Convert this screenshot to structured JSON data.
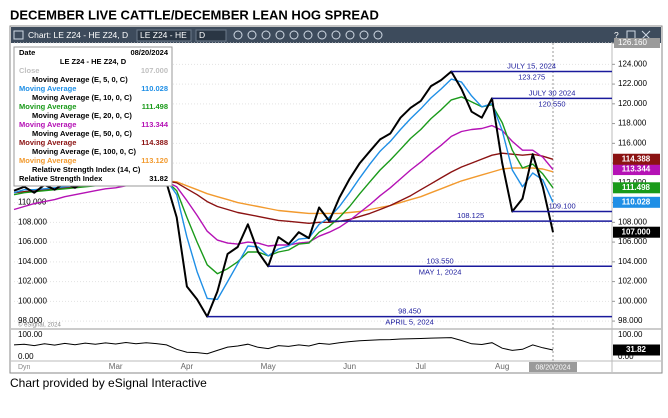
{
  "title": "DECEMBER LIVE CATTLE/DECEMBER LEAN HOG SPREAD",
  "footer": "Chart provided by eSignal Interactive",
  "ui": {
    "toolbar_title": "Chart: LE Z24 - HE Z24, D",
    "symbol_box": "LE Z24 - HE",
    "interval_box": "D",
    "help": "?",
    "watermark": "© eSignal, 2024",
    "mode": "Dyn"
  },
  "chart_data": {
    "type": "line",
    "categories": [
      null,
      null,
      null,
      null,
      null,
      null,
      null,
      null,
      null,
      null,
      "Mar",
      null,
      null,
      null,
      null,
      null,
      null,
      "Apr",
      null,
      null,
      null,
      null,
      null,
      null,
      null,
      "May",
      null,
      null,
      null,
      null,
      null,
      null,
      null,
      "Jun",
      null,
      null,
      null,
      null,
      null,
      null,
      "Jul",
      null,
      null,
      null,
      null,
      null,
      null,
      null,
      "Aug",
      null,
      null,
      null,
      null,
      null
    ],
    "ylim": [
      97.3,
      126.16
    ],
    "yticks": [
      {
        "value": 126.16,
        "label": "126.160"
      },
      {
        "value": 124,
        "label": "124.000"
      },
      {
        "value": 122,
        "label": "122.000"
      },
      {
        "value": 120,
        "label": "120.000"
      },
      {
        "value": 118,
        "label": "118.000"
      },
      {
        "value": 116,
        "label": "116.000"
      },
      {
        "value": 114,
        "label": "114.000"
      },
      {
        "value": 112,
        "label": "112.000"
      },
      {
        "value": 110,
        "label": "110.000"
      },
      {
        "value": 108,
        "label": "108.000"
      },
      {
        "value": 106,
        "label": "106.000"
      },
      {
        "value": 104,
        "label": "104.000"
      },
      {
        "value": 102,
        "label": "102.000"
      },
      {
        "value": 100,
        "label": "100.000"
      },
      {
        "value": 98,
        "label": "98.000"
      }
    ],
    "y_left_ticks": [
      {
        "value": 110,
        "label": "110.000"
      },
      {
        "value": 108,
        "label": "108.000"
      },
      {
        "value": 106,
        "label": "106.000"
      },
      {
        "value": 104,
        "label": "104.000"
      },
      {
        "value": 102,
        "label": "102.000"
      },
      {
        "value": 100,
        "label": "100.000"
      },
      {
        "value": 98,
        "label": "98.000"
      }
    ],
    "grid": true,
    "cursor_date": "08/20/2024",
    "data_window": {
      "date_label": "Date",
      "symbol": "LE Z24 - HE Z24, D"
    },
    "series": [
      {
        "name": "Close",
        "color": "#000000",
        "tag": true,
        "values": [
          111.2,
          111.6,
          111.0,
          111.8,
          111.3,
          112.0,
          111.5,
          112.2,
          111.8,
          112.4,
          112.0,
          112.8,
          112.3,
          112.9,
          112.5,
          112.0,
          108.5,
          101.5,
          100.2,
          98.45,
          101.0,
          104.8,
          105.5,
          107.8,
          105.0,
          103.55,
          106.5,
          105.8,
          107.0,
          106.4,
          109.5,
          108.125,
          110.5,
          112.4,
          114.0,
          115.2,
          116.4,
          117.0,
          118.6,
          119.6,
          120.3,
          121.8,
          122.4,
          123.275,
          121.5,
          119.2,
          118.6,
          120.55,
          114.0,
          109.1,
          110.4,
          114.9,
          111.6,
          107.0
        ],
        "value_labels": [
          null,
          null,
          null,
          null,
          null,
          null,
          null,
          null,
          null,
          null,
          null,
          null,
          null,
          null,
          null,
          null,
          null,
          null,
          null,
          null,
          null,
          null,
          null,
          null,
          null,
          null,
          null,
          null,
          null,
          null,
          null,
          null,
          null,
          null,
          null,
          null,
          null,
          null,
          null,
          null,
          null,
          null,
          null,
          null,
          null,
          null,
          null,
          null,
          null,
          null,
          null,
          null,
          null,
          "107.000"
        ]
      },
      {
        "name": "Moving Average",
        "study": "Moving Average (E, 5, 0, C)",
        "color": "#1f8fe6",
        "tag": true,
        "values": [
          111.0,
          111.3,
          111.3,
          111.4,
          111.5,
          111.6,
          111.7,
          111.8,
          111.9,
          112.0,
          112.1,
          112.3,
          112.4,
          112.5,
          112.5,
          112.3,
          110.8,
          106.5,
          103.0,
          100.3,
          100.2,
          102.0,
          103.8,
          105.6,
          105.5,
          104.6,
          105.3,
          105.6,
          106.3,
          106.4,
          107.8,
          108.5,
          109.6,
          111.0,
          112.5,
          113.9,
          115.2,
          116.2,
          117.4,
          118.5,
          119.5,
          120.6,
          121.5,
          122.5,
          122.2,
          120.8,
          119.7,
          120.0,
          117.3,
          113.3,
          111.6,
          113.0,
          112.3,
          110.028
        ]
      },
      {
        "name": "Moving Average",
        "study": "Moving Average (E, 10, 0, C)",
        "color": "#1a9a1a",
        "tag": true,
        "values": [
          110.8,
          111.0,
          111.1,
          111.2,
          111.3,
          111.4,
          111.5,
          111.6,
          111.7,
          111.8,
          111.9,
          112.0,
          112.1,
          112.2,
          112.3,
          112.2,
          111.2,
          108.5,
          106.0,
          103.7,
          102.8,
          103.3,
          104.0,
          105.0,
          105.0,
          104.6,
          105.0,
          105.2,
          105.8,
          105.9,
          107.0,
          107.6,
          108.5,
          109.6,
          110.9,
          112.1,
          113.3,
          114.3,
          115.4,
          116.5,
          117.4,
          118.5,
          119.4,
          120.4,
          120.7,
          120.2,
          119.7,
          119.9,
          118.1,
          115.3,
          113.5,
          113.9,
          112.9,
          111.498
        ]
      },
      {
        "name": "Moving Average",
        "study": "Moving Average (E, 20, 0, C)",
        "color": "#b512b5",
        "tag": true,
        "values": [
          109.3,
          109.6,
          109.9,
          110.1,
          110.3,
          110.6,
          110.8,
          111.0,
          111.2,
          111.4,
          111.5,
          111.7,
          111.8,
          112.0,
          112.1,
          112.1,
          111.6,
          110.2,
          108.7,
          107.1,
          106.2,
          105.9,
          105.8,
          106.0,
          105.9,
          105.6,
          105.7,
          105.7,
          105.9,
          106.0,
          106.6,
          107.0,
          107.5,
          108.2,
          109.0,
          109.8,
          110.7,
          111.5,
          112.4,
          113.3,
          114.1,
          115.0,
          115.8,
          116.7,
          117.2,
          117.4,
          117.5,
          117.8,
          117.3,
          116.2,
          115.3,
          115.3,
          114.6,
          113.344
        ]
      },
      {
        "name": "Moving Average",
        "study": "Moving Average (E, 50, 0, C)",
        "color": "#8b1212",
        "tag": true,
        "values": [
          111.0,
          111.1,
          111.2,
          111.3,
          111.4,
          111.5,
          111.6,
          111.7,
          111.8,
          111.9,
          112.0,
          112.0,
          112.1,
          112.2,
          112.2,
          112.2,
          112.0,
          111.4,
          110.8,
          110.1,
          109.6,
          109.3,
          109.0,
          108.8,
          108.6,
          108.4,
          108.2,
          108.1,
          108.0,
          107.9,
          108.0,
          108.0,
          108.1,
          108.3,
          108.6,
          108.9,
          109.3,
          109.7,
          110.2,
          110.7,
          111.3,
          111.9,
          112.5,
          113.1,
          113.6,
          114.0,
          114.4,
          114.8,
          115.0,
          114.9,
          114.8,
          114.9,
          114.7,
          114.388
        ]
      },
      {
        "name": "Moving Average",
        "study": "Moving Average (E, 100, 0, C)",
        "color": "#f29a2e",
        "tag": false,
        "values": [
          112.6,
          112.6,
          112.5,
          112.5,
          112.4,
          112.4,
          112.4,
          112.3,
          112.3,
          112.3,
          112.3,
          112.3,
          112.3,
          112.3,
          112.3,
          112.2,
          112.1,
          111.7,
          111.3,
          110.9,
          110.6,
          110.3,
          110.0,
          109.8,
          109.6,
          109.4,
          109.2,
          109.1,
          109.0,
          108.9,
          108.9,
          108.9,
          108.9,
          109.0,
          109.1,
          109.3,
          109.5,
          109.7,
          110.0,
          110.3,
          110.6,
          111.0,
          111.4,
          111.8,
          112.2,
          112.5,
          112.8,
          113.1,
          113.4,
          113.5,
          113.5,
          113.5,
          113.4,
          113.12
        ],
        "value_labels": [
          null,
          null,
          null,
          null,
          null,
          null,
          null,
          null,
          null,
          null,
          null,
          null,
          null,
          null,
          null,
          null,
          null,
          null,
          null,
          null,
          null,
          null,
          null,
          null,
          null,
          null,
          null,
          null,
          null,
          null,
          null,
          null,
          null,
          null,
          null,
          null,
          null,
          null,
          null,
          null,
          null,
          null,
          null,
          null,
          null,
          null,
          null,
          null,
          null,
          null,
          null,
          null,
          null,
          "113.120"
        ]
      }
    ],
    "rsi": {
      "name": "Relative Strength Index",
      "study": "Relative Strength Index (14, C)",
      "color": "#000000",
      "ylim": [
        0,
        100
      ],
      "yticks": [
        {
          "value": 100,
          "label": "100.00"
        },
        {
          "value": 0,
          "label": "0.00"
        }
      ],
      "values": [
        55,
        58,
        52,
        60,
        54,
        62,
        56,
        63,
        58,
        64,
        59,
        66,
        60,
        65,
        61,
        55,
        35,
        22,
        20,
        15,
        30,
        45,
        50,
        58,
        44,
        38,
        52,
        48,
        55,
        50,
        62,
        58,
        65,
        70,
        74,
        76,
        78,
        79,
        82,
        83,
        84,
        86,
        87,
        88,
        75,
        60,
        57,
        65,
        40,
        30,
        35,
        55,
        42,
        31.82
      ]
    },
    "annotations": [
      {
        "value": 123.275,
        "label": "123.275",
        "date": "JULY 15, 2024",
        "date_position": "above"
      },
      {
        "value": 120.55,
        "label": "120.550",
        "date": "JULY 30  2024",
        "date_position": "above"
      },
      {
        "value": 108.125,
        "label": "108.125"
      },
      {
        "value": 109.1,
        "label": "109.100"
      },
      {
        "value": 103.55,
        "label": "103.550",
        "date": "MAY 1, 2024",
        "date_position": "below"
      },
      {
        "value": 98.45,
        "label": "98.450",
        "date": "APRIL 5, 2024",
        "date_position": "below"
      }
    ],
    "annotation_color": "#1a1a9c"
  }
}
